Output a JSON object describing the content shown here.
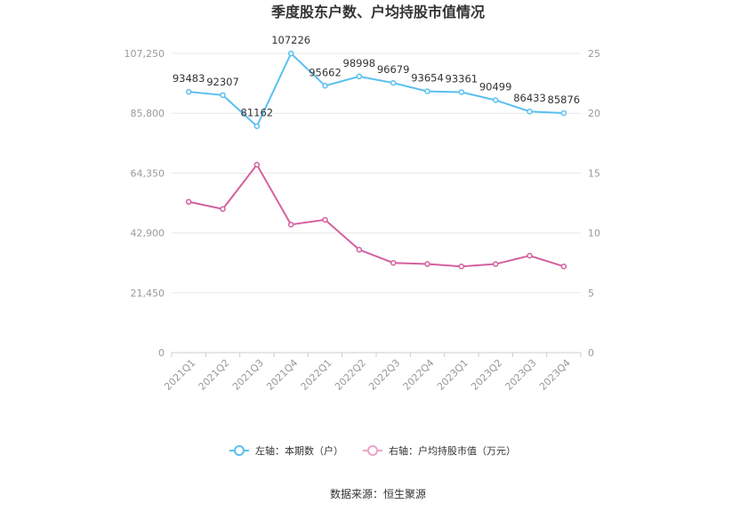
{
  "chart_data": {
    "type": "line",
    "title": "季度股东户数、户均持股市值情况",
    "categories": [
      "2021Q1",
      "2021Q2",
      "2021Q3",
      "2021Q4",
      "2022Q1",
      "2022Q2",
      "2022Q3",
      "2022Q4",
      "2023Q1",
      "2023Q2",
      "2023Q3",
      "2023Q4"
    ],
    "left_axis": {
      "ticks": [
        "0",
        "21,450",
        "42,900",
        "64,350",
        "85,800",
        "107,250"
      ],
      "min": 0,
      "max": 107250
    },
    "right_axis": {
      "ticks": [
        "0",
        "5",
        "10",
        "15",
        "20",
        "25"
      ],
      "min": 0,
      "max": 25
    },
    "series": [
      {
        "name": "左轴：本期数（户）",
        "axis": "left",
        "color": "#5bc0f0",
        "values": [
          93483,
          92307,
          81162,
          107226,
          95662,
          98998,
          96679,
          93654,
          93361,
          90499,
          86433,
          85876
        ],
        "labels": [
          "93483",
          "92307",
          "81162",
          "107226",
          "95662",
          "98998",
          "96679",
          "93654",
          "93361",
          "90499",
          "86433",
          "85876"
        ]
      },
      {
        "name": "右轴：户均持股市值（万元）",
        "axis": "right",
        "color": "#d4609e",
        "values": [
          12.6,
          12.0,
          15.7,
          10.7,
          11.1,
          8.6,
          7.5,
          7.4,
          7.2,
          7.4,
          8.1,
          7.2
        ]
      }
    ],
    "grid": true,
    "legend_position": "bottom"
  },
  "source_text": "数据来源：恒生聚源"
}
